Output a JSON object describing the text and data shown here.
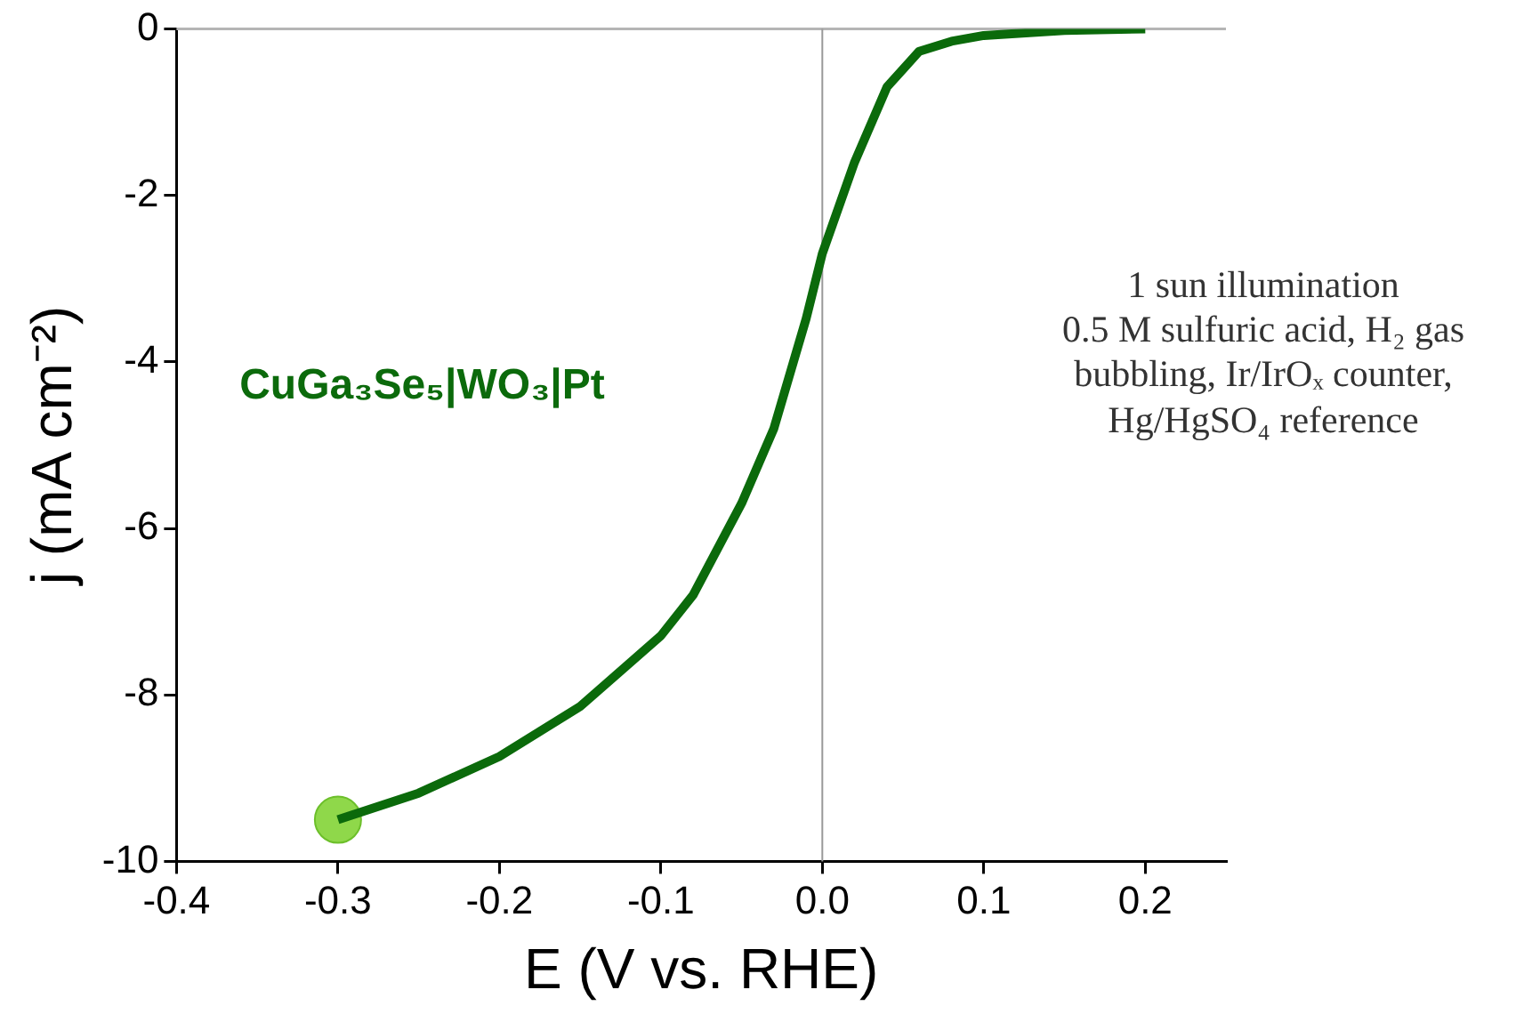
{
  "chart_data": {
    "type": "line",
    "xlabel": "E (V vs. RHE)",
    "ylabel": "j (mA cm⁻²)",
    "xlim": [
      -0.4,
      0.25
    ],
    "xticks": [
      -0.4,
      -0.3,
      -0.2,
      -0.1,
      {
        "value": 0,
        "label": "0.0"
      },
      0.1,
      0.2
    ],
    "ylim": [
      -10,
      0
    ],
    "yticks": [
      -10,
      -8,
      -6,
      -4,
      -2,
      0
    ],
    "grid": false,
    "legend": false,
    "series": [
      {
        "name": "CuGa₃Se₅|WO₃|Pt",
        "color": "#0b6a0b",
        "marker": "none",
        "x": [
          -0.3,
          -0.25,
          -0.2,
          -0.15,
          -0.1,
          -0.08,
          -0.05,
          -0.03,
          -0.01,
          0,
          0.02,
          0.04,
          0.06,
          0.08,
          0.1,
          0.15,
          0.2
        ],
        "values": [
          -9.5,
          -9.18,
          -8.74,
          -8.14,
          -7.29,
          -6.8,
          -5.7,
          -4.8,
          -3.48,
          -2.7,
          -1.6,
          -0.7,
          -0.27,
          -0.15,
          -0.08,
          -0.02,
          0
        ]
      },
      {
        "type": "scatter",
        "color": "#8fd84a",
        "marker": "circle",
        "x": [
          -0.3
        ],
        "values": [
          -9.5
        ]
      }
    ],
    "ref_lines": [
      {
        "axis": "x",
        "value": 0,
        "color": "#999999"
      }
    ],
    "annotations": [
      "1 sun illumination",
      "0.5 M sulfuric acid, H₂ gas bubbling, Ir/IrOₓ counter, Hg/HgSO₄ reference"
    ]
  }
}
